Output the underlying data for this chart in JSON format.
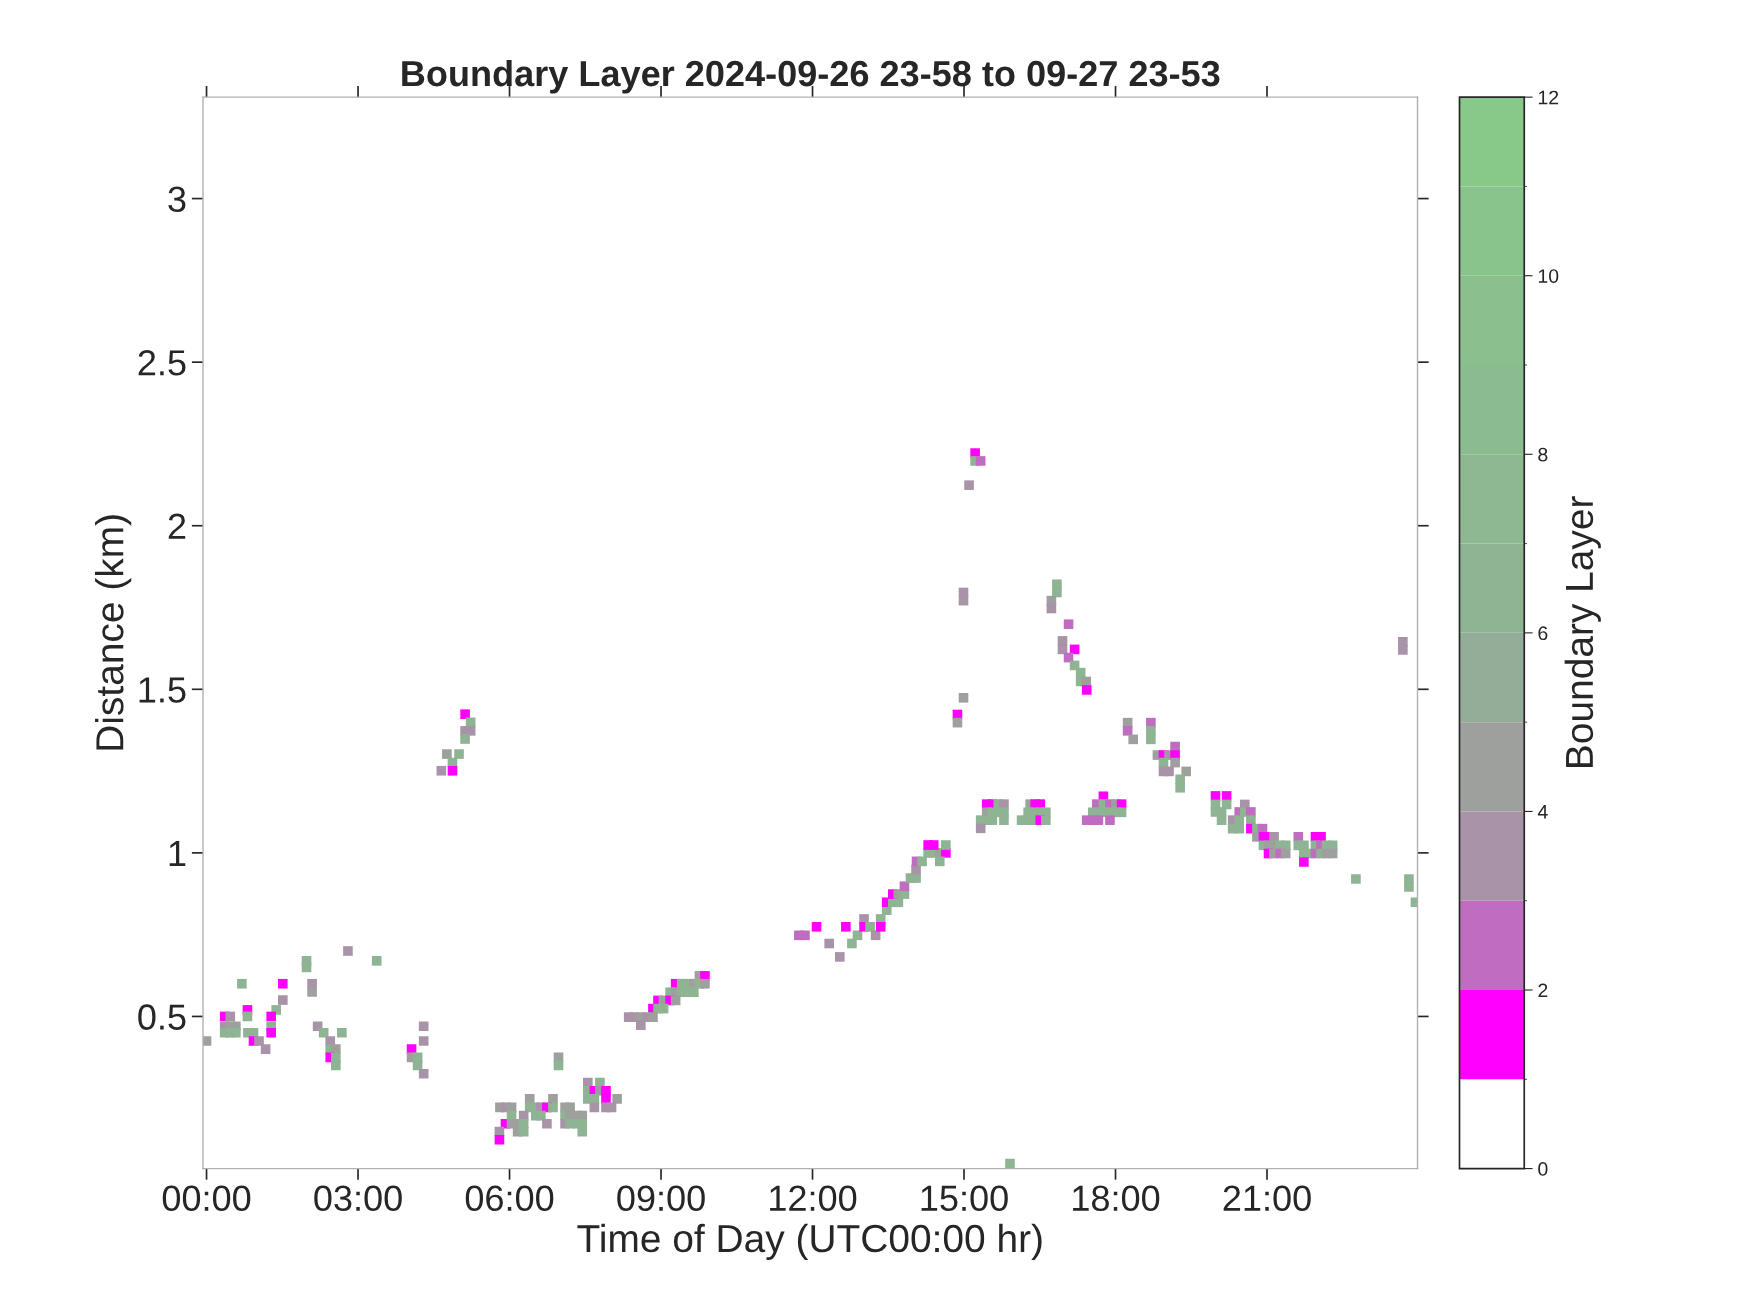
{
  "chart_data": {
    "type": "scatter",
    "title": "Boundary Layer 2024-09-26 23-58 to 09-27 23-53",
    "xlabel": "Time of Day (UTC00:00 hr)",
    "ylabel": "Distance (km)",
    "clabel": "Boundary Layer",
    "xlim": [
      -0.07,
      23.98
    ],
    "ylim": [
      0.035,
      3.31
    ],
    "xticks": [
      {
        "value": 0,
        "label": "00:00"
      },
      {
        "value": 3,
        "label": "03:00"
      },
      {
        "value": 6,
        "label": "06:00"
      },
      {
        "value": 9,
        "label": "09:00"
      },
      {
        "value": 12,
        "label": "12:00"
      },
      {
        "value": 15,
        "label": "15:00"
      },
      {
        "value": 18,
        "label": "18:00"
      },
      {
        "value": 21,
        "label": "21:00"
      }
    ],
    "yticks": [
      0.5,
      1,
      1.5,
      2,
      2.5,
      3
    ],
    "clim": [
      0,
      12
    ],
    "cticks": [
      0,
      2,
      4,
      6,
      8,
      10,
      12
    ],
    "marker": "square",
    "grid": false,
    "legend": false,
    "x": [
      0.0,
      0.7,
      1.51,
      1.51,
      1.38,
      0.81,
      0.81,
      0.36,
      0.47,
      0.36,
      0.47,
      0.58,
      0.36,
      0.47,
      0.58,
      0.82,
      0.93,
      0.93,
      1.04,
      1.17,
      1.28,
      1.28,
      1.28,
      1.98,
      1.98,
      2.09,
      2.09,
      2.8,
      3.37,
      2.2,
      2.32,
      2.68,
      2.45,
      2.45,
      2.56,
      2.45,
      2.56,
      2.56,
      4.3,
      4.3,
      4.06,
      4.06,
      4.18,
      4.18,
      4.3,
      6.97,
      6.97,
      7.55,
      7.79,
      7.55,
      7.68,
      7.79,
      7.91,
      6.4,
      6.86,
      7.55,
      7.68,
      7.91,
      8.13,
      5.81,
      5.92,
      6.04,
      6.4,
      6.52,
      6.62,
      6.74,
      6.86,
      7.1,
      7.2,
      7.68,
      7.91,
      8.02,
      6.04,
      6.28,
      6.52,
      6.62,
      7.1,
      7.2,
      7.34,
      7.44,
      5.92,
      6.04,
      6.16,
      6.28,
      6.74,
      7.1,
      7.2,
      7.34,
      7.44,
      5.8,
      6.16,
      6.28,
      7.44,
      5.8,
      9.76,
      9.87,
      9.29,
      9.41,
      9.54,
      9.65,
      9.76,
      9.87,
      9.18,
      9.29,
      9.41,
      9.54,
      9.65,
      8.94,
      9.05,
      9.18,
      9.29,
      8.84,
      8.94,
      9.05,
      8.36,
      8.47,
      8.6,
      8.72,
      8.84,
      8.6,
      5.12,
      5.23,
      5.12,
      5.23,
      5.12,
      4.76,
      5.0,
      4.87,
      4.65,
      4.87,
      11.73,
      11.85,
      12.08,
      12.33,
      12.54,
      12.66,
      12.78,
      12.89,
      13.02,
      13.02,
      13.14,
      13.25,
      13.35,
      13.35,
      13.47,
      13.47,
      13.59,
      13.7,
      13.59,
      13.7,
      13.82,
      13.82,
      13.94,
      14.05,
      14.05,
      14.06,
      14.17,
      14.29,
      14.4,
      14.52,
      14.64,
      14.29,
      14.4,
      14.64,
      14.52,
      15.22,
      15.22,
      15.33,
      15.1,
      14.99,
      14.99,
      16.84,
      16.84,
      16.73,
      16.73,
      17.07,
      16.95,
      16.95,
      17.19,
      17.07,
      17.19,
      17.31,
      17.31,
      17.42,
      17.43,
      14.99,
      14.87,
      14.87,
      17.76,
      15.45,
      15.56,
      15.68,
      15.79,
      16.31,
      16.41,
      16.51,
      17.63,
      17.76,
      17.89,
      18.01,
      18.12,
      15.45,
      15.56,
      15.68,
      15.79,
      16.27,
      16.39,
      16.51,
      16.62,
      17.55,
      17.66,
      17.77,
      17.89,
      18.01,
      18.12,
      15.33,
      15.45,
      15.56,
      15.79,
      16.14,
      16.25,
      16.39,
      16.51,
      16.62,
      17.43,
      17.55,
      17.66,
      17.89,
      15.33,
      18.24,
      18.24,
      18.35,
      18.7,
      18.7,
      18.7,
      19.18,
      18.83,
      18.95,
      19.06,
      19.18,
      18.95,
      19.18,
      18.95,
      19.06,
      19.4,
      19.28,
      19.28,
      19.98,
      20.2,
      19.98,
      20.2,
      20.56,
      19.98,
      20.1,
      20.45,
      20.56,
      20.68,
      20.1,
      20.32,
      20.45,
      20.68,
      20.32,
      20.45,
      20.68,
      20.8,
      20.91,
      20.8,
      20.93,
      21.03,
      21.14,
      21.62,
      21.96,
      22.07,
      20.93,
      21.04,
      21.14,
      21.26,
      21.37,
      21.62,
      21.73,
      21.96,
      22.07,
      22.18,
      22.3,
      21.03,
      21.14,
      21.26,
      21.37,
      21.73,
      21.85,
      21.96,
      22.07,
      22.18,
      22.3,
      21.73,
      22.76,
      23.81,
      23.81,
      23.94,
      23.69,
      23.69,
      15.91
    ],
    "values": [
      0.425,
      0.6,
      0.6,
      0.55,
      0.52,
      0.52,
      0.5,
      0.5,
      0.5,
      0.47,
      0.47,
      0.47,
      0.45,
      0.45,
      0.45,
      0.45,
      0.45,
      0.425,
      0.425,
      0.4,
      0.5,
      0.47,
      0.45,
      0.67,
      0.65,
      0.6,
      0.575,
      0.7,
      0.67,
      0.47,
      0.45,
      0.45,
      0.425,
      0.4,
      0.4,
      0.375,
      0.375,
      0.35,
      0.47,
      0.425,
      0.4,
      0.375,
      0.375,
      0.35,
      0.325,
      0.375,
      0.35,
      0.298,
      0.298,
      0.273,
      0.273,
      0.273,
      0.273,
      0.248,
      0.248,
      0.248,
      0.248,
      0.248,
      0.248,
      0.222,
      0.222,
      0.222,
      0.222,
      0.222,
      0.222,
      0.222,
      0.222,
      0.222,
      0.222,
      0.222,
      0.222,
      0.222,
      0.197,
      0.197,
      0.197,
      0.197,
      0.197,
      0.197,
      0.197,
      0.197,
      0.172,
      0.172,
      0.172,
      0.172,
      0.172,
      0.172,
      0.172,
      0.172,
      0.172,
      0.148,
      0.148,
      0.148,
      0.148,
      0.123,
      0.624,
      0.624,
      0.6,
      0.6,
      0.6,
      0.6,
      0.6,
      0.6,
      0.574,
      0.574,
      0.574,
      0.574,
      0.574,
      0.549,
      0.549,
      0.549,
      0.549,
      0.524,
      0.524,
      0.524,
      0.498,
      0.498,
      0.498,
      0.498,
      0.498,
      0.473,
      1.424,
      1.399,
      1.373,
      1.373,
      1.348,
      1.302,
      1.302,
      1.276,
      1.251,
      1.251,
      0.748,
      0.748,
      0.774,
      0.723,
      0.682,
      0.774,
      0.723,
      0.748,
      0.798,
      0.774,
      0.774,
      0.748,
      0.798,
      0.774,
      0.825,
      0.849,
      0.849,
      0.849,
      0.874,
      0.874,
      0.874,
      0.898,
      0.923,
      0.923,
      0.949,
      0.974,
      0.974,
      1.0,
      1.0,
      1.0,
      1.0,
      1.024,
      1.024,
      1.024,
      0.974,
      2.222,
      2.198,
      2.198,
      2.124,
      1.796,
      1.771,
      1.821,
      1.796,
      1.771,
      1.747,
      1.699,
      1.648,
      1.622,
      1.622,
      1.597,
      1.573,
      1.551,
      1.524,
      1.524,
      1.498,
      1.474,
      1.423,
      1.398,
      1.173,
      1.149,
      1.149,
      1.149,
      1.149,
      1.149,
      1.149,
      1.149,
      1.149,
      1.149,
      1.149,
      1.149,
      1.149,
      1.124,
      1.124,
      1.124,
      1.124,
      1.124,
      1.124,
      1.124,
      1.124,
      1.124,
      1.124,
      1.124,
      1.124,
      1.124,
      1.124,
      1.1,
      1.1,
      1.1,
      1.1,
      1.1,
      1.1,
      1.1,
      1.1,
      1.1,
      1.1,
      1.1,
      1.1,
      1.1,
      1.075,
      1.398,
      1.373,
      1.347,
      1.398,
      1.373,
      1.347,
      1.325,
      1.299,
      1.299,
      1.299,
      1.299,
      1.276,
      1.276,
      1.249,
      1.249,
      1.249,
      1.225,
      1.199,
      1.174,
      1.174,
      1.148,
      1.148,
      1.148,
      1.125,
      1.125,
      1.125,
      1.125,
      1.125,
      1.1,
      1.1,
      1.1,
      1.1,
      1.074,
      1.074,
      1.074,
      1.074,
      1.074,
      1.049,
      1.049,
      1.049,
      1.049,
      1.049,
      1.049,
      1.049,
      1.023,
      1.023,
      1.023,
      1.023,
      1.023,
      1.023,
      1.023,
      1.023,
      1.023,
      1.023,
      1.023,
      0.998,
      0.998,
      0.998,
      0.998,
      0.998,
      0.998,
      0.998,
      0.998,
      0.998,
      0.998,
      0.972,
      0.92,
      0.92,
      0.896,
      0.849,
      1.645,
      1.62,
      0.05
    ],
    "cvalues": [
      4.5,
      6.5,
      1.5,
      3.5,
      6.5,
      1.5,
      6.5,
      1.5,
      3.5,
      3.5,
      4.5,
      4.5,
      6.5,
      6.5,
      6.5,
      6.5,
      6.5,
      1.5,
      3.5,
      3.5,
      1.5,
      6.5,
      1.5,
      6.5,
      6.5,
      3.5,
      4.5,
      3.5,
      6.5,
      3.5,
      6.5,
      6.5,
      3.5,
      6.5,
      4.5,
      1.5,
      6.5,
      6.5,
      3.5,
      3.5,
      1.5,
      4.5,
      6.5,
      6.5,
      3.5,
      4.5,
      6.5,
      3.5,
      6.5,
      6.5,
      1.5,
      3.5,
      1.5,
      4.5,
      4.5,
      6.5,
      6.5,
      1.5,
      4.5,
      4.5,
      3.5,
      4.5,
      6.5,
      6.5,
      3.5,
      1.5,
      6.5,
      4.5,
      4.5,
      3.5,
      3.5,
      3.5,
      6.5,
      3.5,
      6.5,
      6.5,
      6.5,
      4.5,
      4.5,
      4.5,
      1.5,
      4.5,
      4.5,
      6.5,
      3.5,
      3.5,
      6.5,
      6.5,
      6.5,
      3.5,
      4.5,
      6.5,
      6.5,
      1.5,
      4.5,
      1.5,
      1.5,
      6.5,
      6.5,
      4.5,
      6.5,
      4.5,
      6.5,
      4.5,
      6.5,
      6.5,
      6.5,
      1.5,
      4.5,
      1.5,
      4.5,
      1.5,
      6.5,
      6.5,
      3.5,
      3.5,
      4.5,
      3.5,
      4.5,
      3.5,
      1.5,
      6.5,
      3.5,
      3.5,
      6.5,
      4.5,
      6.5,
      6.5,
      3.5,
      1.5,
      2.5,
      2.5,
      1.5,
      3.5,
      3.5,
      1.5,
      6.5,
      6.5,
      3.5,
      1.5,
      6.5,
      3.5,
      6.5,
      1.5,
      6.5,
      1.5,
      6.5,
      6.5,
      1.5,
      4.5,
      6.5,
      2.5,
      6.5,
      6.5,
      3.5,
      2.5,
      6.5,
      6.5,
      6.5,
      4.5,
      1.5,
      1.5,
      1.5,
      6.5,
      6.5,
      1.5,
      6.5,
      2.5,
      3.5,
      3.5,
      3.5,
      6.5,
      6.5,
      4.5,
      3.5,
      2.5,
      3.5,
      3.5,
      1.5,
      2.5,
      6.5,
      6.5,
      6.5,
      4.5,
      1.5,
      4.5,
      1.5,
      4.5,
      1.5,
      1.5,
      1.5,
      6.5,
      3.5,
      4.5,
      1.5,
      1.5,
      2.5,
      6.5,
      2.5,
      4.5,
      1.5,
      4.5,
      6.5,
      6.5,
      6.5,
      6.5,
      6.5,
      6.5,
      6.5,
      6.5,
      6.5,
      6.5,
      6.5,
      6.5,
      6.5,
      6.5,
      6.5,
      6.5,
      6.5,
      6.5,
      6.5,
      6.5,
      1.5,
      6.5,
      2.5,
      2.5,
      2.5,
      2.5,
      3.5,
      4.5,
      2.5,
      4.5,
      2.5,
      6.5,
      6.5,
      2.5,
      4.5,
      1.5,
      3.5,
      1.5,
      6.5,
      4.5,
      3.5,
      3.5,
      4.5,
      6.5,
      6.5,
      1.5,
      1.5,
      6.5,
      6.5,
      3.5,
      6.5,
      6.5,
      2.5,
      6.5,
      2.5,
      6.5,
      3.5,
      6.5,
      6.5,
      6.5,
      6.5,
      1.5,
      6.5,
      2.5,
      4.5,
      1.5,
      1.5,
      3.5,
      2.5,
      1.5,
      1.5,
      6.5,
      4.5,
      4.5,
      6.5,
      6.5,
      6.5,
      6.5,
      6.5,
      2.5,
      6.5,
      6.5,
      1.5,
      4.5,
      2.5,
      4.5,
      6.5,
      6.5,
      2.5,
      6.5,
      4.5,
      4.5,
      1.5,
      6.5,
      6.5,
      6.5,
      6.5,
      3.5,
      3.5,
      6.5
    ]
  }
}
